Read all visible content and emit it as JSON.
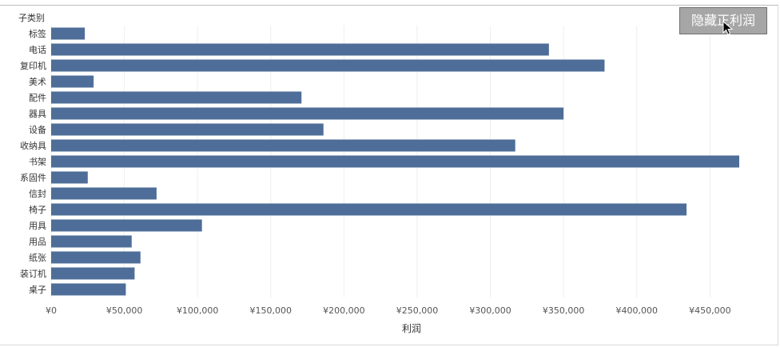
{
  "hide_button": {
    "label": "隐藏正利润"
  },
  "colors": {
    "bar": "#4e6e99",
    "grid": "#eeeeee",
    "text": "#333333",
    "axis": "#555555"
  },
  "chart_data": {
    "type": "bar",
    "orientation": "horizontal",
    "category_header": "子类别",
    "categories": [
      "标签",
      "电话",
      "复印机",
      "美术",
      "配件",
      "器具",
      "设备",
      "收纳具",
      "书架",
      "系固件",
      "信封",
      "椅子",
      "用具",
      "用品",
      "纸张",
      "装订机",
      "桌子"
    ],
    "values": [
      23000,
      340000,
      378000,
      29000,
      171000,
      350000,
      186000,
      317000,
      470000,
      25000,
      72000,
      434000,
      103000,
      55000,
      61000,
      57000,
      51000
    ],
    "xlabel": "利润",
    "xlim": [
      0,
      470000
    ],
    "xticks": [
      0,
      50000,
      100000,
      150000,
      200000,
      250000,
      300000,
      350000,
      400000,
      450000
    ],
    "xtick_labels": [
      "¥0",
      "¥50,000",
      "¥100,000",
      "¥150,000",
      "¥200,000",
      "¥250,000",
      "¥300,000",
      "¥350,000",
      "¥400,000",
      "¥450,000"
    ],
    "grid": true
  }
}
